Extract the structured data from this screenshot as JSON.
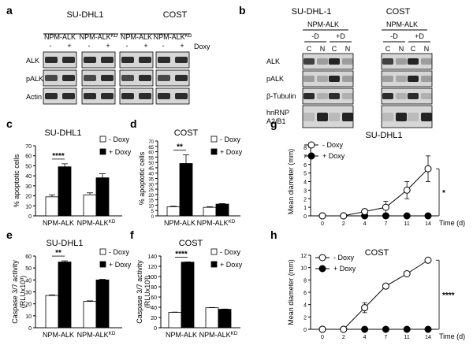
{
  "panel_letters": [
    "a",
    "b",
    "c",
    "d",
    "e",
    "f",
    "g",
    "h"
  ],
  "colors": {
    "ink": "#000000",
    "blot_bg": "#d6d6d6",
    "band": "#1a1a1a",
    "band_faint": "#8a8a8a",
    "bar_open": "#ffffff",
    "bar_filled": "#000000"
  },
  "panel_a": {
    "cell_lines": [
      "SU-DHL1",
      "COST"
    ],
    "constructs": [
      "NPM-ALK",
      "NPM-ALK",
      "NPM-ALK",
      "NPM-ALK"
    ],
    "kd_flags": [
      false,
      true,
      false,
      true
    ],
    "kd_superscript": "KD",
    "signs": [
      "-",
      "+",
      "-",
      "+",
      "-",
      "+",
      "-",
      "+"
    ],
    "doxy_label": "Doxy",
    "rows": [
      "ALK",
      "pALK",
      "Actin"
    ]
  },
  "panel_b": {
    "cell_lines": [
      "SU-DHL-1",
      "COST"
    ],
    "construct": "NPM-ALK",
    "treatments": [
      "-D",
      "+D",
      "-D",
      "+D"
    ],
    "fractions": [
      "C",
      "N",
      "C",
      "N",
      "C",
      "N",
      "C",
      "N"
    ],
    "rows": [
      "ALK",
      "pALK",
      "β-Tubulin",
      "hnRNP",
      "A2/B1"
    ]
  },
  "chart_data": [
    {
      "panel": "c",
      "type": "bar",
      "title": "SU-DHL1",
      "ylabel": "% apoptotic cells",
      "ylim": [
        0,
        70
      ],
      "yticks": [
        "0",
        "10",
        "20",
        "30",
        "40",
        "50",
        "60",
        "70"
      ],
      "categories": [
        "NPM-ALK",
        "NPM-ALK"
      ],
      "kd_flags": [
        false,
        true
      ],
      "kd_superscript": "KD",
      "series": [
        {
          "name": "- Doxy",
          "values": [
            19,
            21
          ],
          "errors": [
            2,
            2
          ]
        },
        {
          "name": "+ Doxy",
          "values": [
            49,
            38
          ],
          "errors": [
            3,
            4
          ]
        }
      ],
      "significance": "****"
    },
    {
      "panel": "d",
      "type": "bar",
      "title": "COST",
      "ylabel": "% apoptotic cells",
      "ylim": [
        0,
        70
      ],
      "yticks": [
        "0",
        "5",
        "10",
        "15",
        "20",
        "25",
        "30",
        "35",
        "40",
        "45",
        "50",
        "55",
        "60",
        "65",
        "70"
      ],
      "categories": [
        "NPM-ALK",
        "NPM-ALK"
      ],
      "kd_flags": [
        false,
        true
      ],
      "kd_superscript": "KD",
      "series": [
        {
          "name": "- Doxy",
          "values": [
            8.5,
            8
          ],
          "errors": [
            0.5,
            0.6
          ]
        },
        {
          "name": "+ Doxy",
          "values": [
            49,
            11
          ],
          "errors": [
            8,
            0.5
          ]
        }
      ],
      "significance": "**"
    },
    {
      "panel": "e",
      "type": "bar",
      "title": "SU-DHL1",
      "ylabel": "Caspase 3/7 activity",
      "ylabel2": "(RLUx10³)",
      "ylim": [
        0,
        60
      ],
      "yticks": [
        "0",
        "10",
        "20",
        "30",
        "40",
        "50",
        "60"
      ],
      "categories": [
        "NPM-ALK",
        "NPM-ALK"
      ],
      "kd_flags": [
        false,
        true
      ],
      "kd_superscript": "KD",
      "series": [
        {
          "name": "- Doxy",
          "values": [
            27,
            22
          ],
          "errors": [
            0.5,
            0.5
          ]
        },
        {
          "name": "+ Doxy",
          "values": [
            55,
            40
          ],
          "errors": [
            1,
            0.5
          ]
        }
      ],
      "significance": "**"
    },
    {
      "panel": "f",
      "type": "bar",
      "title": "COST",
      "ylabel": "Caspase 3/7 activity",
      "ylabel2": "(RLUx10³)",
      "ylim": [
        0,
        140
      ],
      "yticks": [
        "0",
        "20",
        "40",
        "60",
        "80",
        "100",
        "120",
        "140"
      ],
      "categories": [
        "NPM-ALK",
        "NPM-ALK"
      ],
      "kd_flags": [
        false,
        true
      ],
      "kd_superscript": "KD",
      "series": [
        {
          "name": "- Doxy",
          "values": [
            30,
            39
          ],
          "errors": [
            0.5,
            0.5
          ]
        },
        {
          "name": "+ Doxy",
          "values": [
            128,
            36
          ],
          "errors": [
            0.5,
            0.5
          ]
        }
      ],
      "significance": "****"
    },
    {
      "panel": "g",
      "type": "line",
      "title": "SU-DHL1",
      "ylabel": "Mean diameter (mm)",
      "xlabel": "Time (d)",
      "ylim": [
        0,
        8
      ],
      "yticks": [
        "0",
        "1",
        "2",
        "3",
        "4",
        "5",
        "6",
        "7",
        "8"
      ],
      "x": [
        "0",
        "2",
        "4",
        "7",
        "11",
        "14"
      ],
      "series": [
        {
          "name": "- Doxy",
          "marker": "open",
          "values": [
            0,
            0,
            0.5,
            1,
            3,
            5.5
          ],
          "errors": [
            0,
            0,
            0.3,
            0.7,
            1,
            1.5
          ]
        },
        {
          "name": "+ Doxy",
          "marker": "filled",
          "values": [
            0,
            0,
            0,
            0,
            0,
            0
          ],
          "errors": [
            0,
            0,
            0,
            0,
            0,
            0
          ]
        }
      ],
      "significance": "*"
    },
    {
      "panel": "h",
      "type": "line",
      "title": "COST",
      "ylabel": "Mean diameter (mm)",
      "xlabel": "Time (d)",
      "ylim": [
        0,
        12
      ],
      "yticks": [
        "0",
        "2",
        "4",
        "6",
        "8",
        "10",
        "12"
      ],
      "x": [
        "0",
        "2",
        "4",
        "7",
        "11",
        "14"
      ],
      "series": [
        {
          "name": "- Doxy",
          "marker": "open",
          "values": [
            0,
            0,
            3.5,
            7,
            9,
            11.2
          ],
          "errors": [
            0,
            0,
            0.8,
            0.2,
            0.3,
            0.2
          ]
        },
        {
          "name": "+ Doxy",
          "marker": "filled",
          "values": [
            0,
            0,
            0,
            0,
            0,
            0
          ],
          "errors": [
            0,
            0,
            0,
            0,
            0,
            0
          ]
        }
      ],
      "significance": "****"
    }
  ]
}
